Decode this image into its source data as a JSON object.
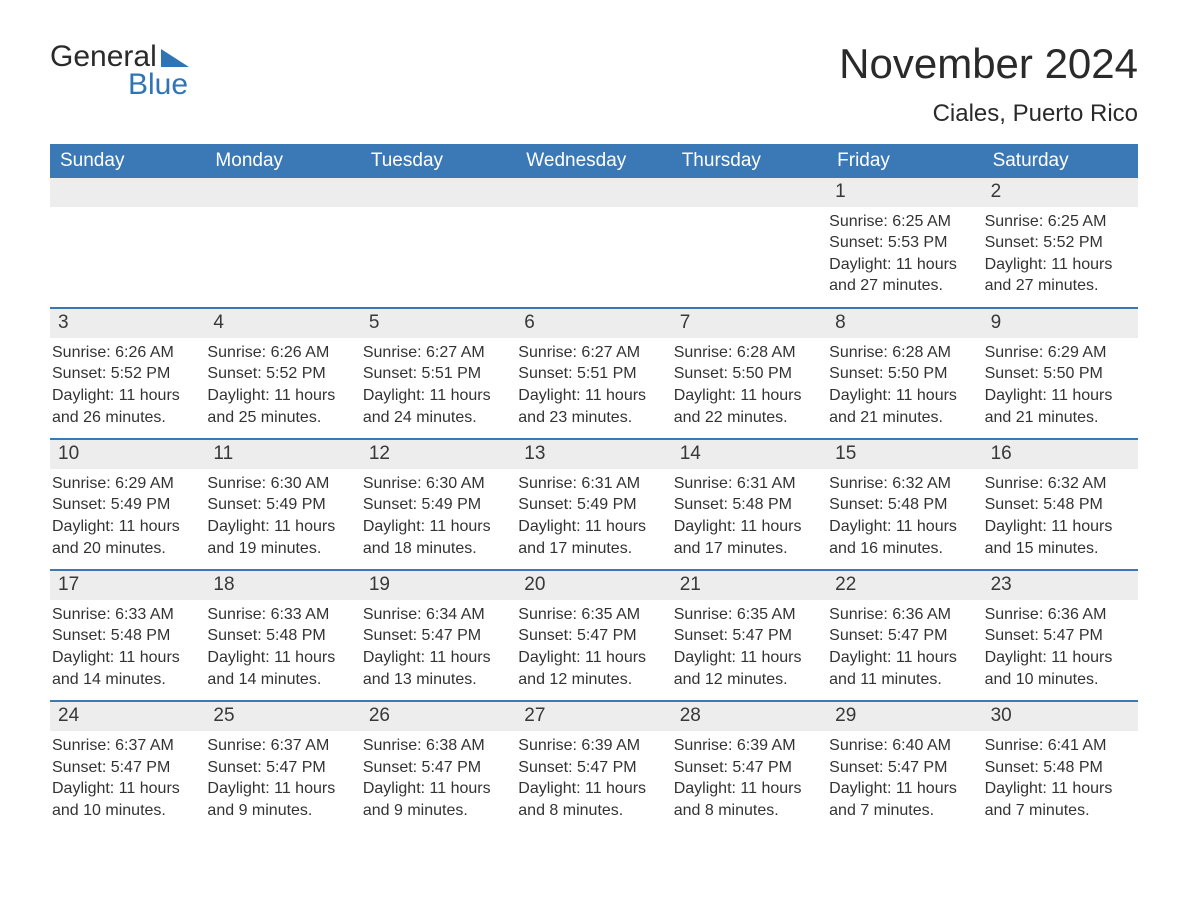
{
  "branding": {
    "word1": "General",
    "word2": "Blue",
    "logo_color": "#2f75b5",
    "text_color": "#2a2a2a"
  },
  "title": "November 2024",
  "location": "Ciales, Puerto Rico",
  "colors": {
    "header_bg": "#3a78b6",
    "header_text": "#ffffff",
    "daynum_bg": "#ededed",
    "border": "#3a78b6",
    "body_text": "#333333",
    "page_bg": "#ffffff"
  },
  "fontsizes": {
    "title": 42,
    "subtitle": 24,
    "dayhead": 19,
    "daynum": 19,
    "body": 16,
    "logo": 30
  },
  "day_names": [
    "Sunday",
    "Monday",
    "Tuesday",
    "Wednesday",
    "Thursday",
    "Friday",
    "Saturday"
  ],
  "weeks": [
    [
      null,
      null,
      null,
      null,
      null,
      {
        "n": "1",
        "sunrise": "6:25 AM",
        "sunset": "5:53 PM",
        "daylight": "11 hours and 27 minutes."
      },
      {
        "n": "2",
        "sunrise": "6:25 AM",
        "sunset": "5:52 PM",
        "daylight": "11 hours and 27 minutes."
      }
    ],
    [
      {
        "n": "3",
        "sunrise": "6:26 AM",
        "sunset": "5:52 PM",
        "daylight": "11 hours and 26 minutes."
      },
      {
        "n": "4",
        "sunrise": "6:26 AM",
        "sunset": "5:52 PM",
        "daylight": "11 hours and 25 minutes."
      },
      {
        "n": "5",
        "sunrise": "6:27 AM",
        "sunset": "5:51 PM",
        "daylight": "11 hours and 24 minutes."
      },
      {
        "n": "6",
        "sunrise": "6:27 AM",
        "sunset": "5:51 PM",
        "daylight": "11 hours and 23 minutes."
      },
      {
        "n": "7",
        "sunrise": "6:28 AM",
        "sunset": "5:50 PM",
        "daylight": "11 hours and 22 minutes."
      },
      {
        "n": "8",
        "sunrise": "6:28 AM",
        "sunset": "5:50 PM",
        "daylight": "11 hours and 21 minutes."
      },
      {
        "n": "9",
        "sunrise": "6:29 AM",
        "sunset": "5:50 PM",
        "daylight": "11 hours and 21 minutes."
      }
    ],
    [
      {
        "n": "10",
        "sunrise": "6:29 AM",
        "sunset": "5:49 PM",
        "daylight": "11 hours and 20 minutes."
      },
      {
        "n": "11",
        "sunrise": "6:30 AM",
        "sunset": "5:49 PM",
        "daylight": "11 hours and 19 minutes."
      },
      {
        "n": "12",
        "sunrise": "6:30 AM",
        "sunset": "5:49 PM",
        "daylight": "11 hours and 18 minutes."
      },
      {
        "n": "13",
        "sunrise": "6:31 AM",
        "sunset": "5:49 PM",
        "daylight": "11 hours and 17 minutes."
      },
      {
        "n": "14",
        "sunrise": "6:31 AM",
        "sunset": "5:48 PM",
        "daylight": "11 hours and 17 minutes."
      },
      {
        "n": "15",
        "sunrise": "6:32 AM",
        "sunset": "5:48 PM",
        "daylight": "11 hours and 16 minutes."
      },
      {
        "n": "16",
        "sunrise": "6:32 AM",
        "sunset": "5:48 PM",
        "daylight": "11 hours and 15 minutes."
      }
    ],
    [
      {
        "n": "17",
        "sunrise": "6:33 AM",
        "sunset": "5:48 PM",
        "daylight": "11 hours and 14 minutes."
      },
      {
        "n": "18",
        "sunrise": "6:33 AM",
        "sunset": "5:48 PM",
        "daylight": "11 hours and 14 minutes."
      },
      {
        "n": "19",
        "sunrise": "6:34 AM",
        "sunset": "5:47 PM",
        "daylight": "11 hours and 13 minutes."
      },
      {
        "n": "20",
        "sunrise": "6:35 AM",
        "sunset": "5:47 PM",
        "daylight": "11 hours and 12 minutes."
      },
      {
        "n": "21",
        "sunrise": "6:35 AM",
        "sunset": "5:47 PM",
        "daylight": "11 hours and 12 minutes."
      },
      {
        "n": "22",
        "sunrise": "6:36 AM",
        "sunset": "5:47 PM",
        "daylight": "11 hours and 11 minutes."
      },
      {
        "n": "23",
        "sunrise": "6:36 AM",
        "sunset": "5:47 PM",
        "daylight": "11 hours and 10 minutes."
      }
    ],
    [
      {
        "n": "24",
        "sunrise": "6:37 AM",
        "sunset": "5:47 PM",
        "daylight": "11 hours and 10 minutes."
      },
      {
        "n": "25",
        "sunrise": "6:37 AM",
        "sunset": "5:47 PM",
        "daylight": "11 hours and 9 minutes."
      },
      {
        "n": "26",
        "sunrise": "6:38 AM",
        "sunset": "5:47 PM",
        "daylight": "11 hours and 9 minutes."
      },
      {
        "n": "27",
        "sunrise": "6:39 AM",
        "sunset": "5:47 PM",
        "daylight": "11 hours and 8 minutes."
      },
      {
        "n": "28",
        "sunrise": "6:39 AM",
        "sunset": "5:47 PM",
        "daylight": "11 hours and 8 minutes."
      },
      {
        "n": "29",
        "sunrise": "6:40 AM",
        "sunset": "5:47 PM",
        "daylight": "11 hours and 7 minutes."
      },
      {
        "n": "30",
        "sunrise": "6:41 AM",
        "sunset": "5:48 PM",
        "daylight": "11 hours and 7 minutes."
      }
    ]
  ],
  "labels": {
    "sunrise_prefix": "Sunrise: ",
    "sunset_prefix": "Sunset: ",
    "daylight_prefix": "Daylight: "
  }
}
